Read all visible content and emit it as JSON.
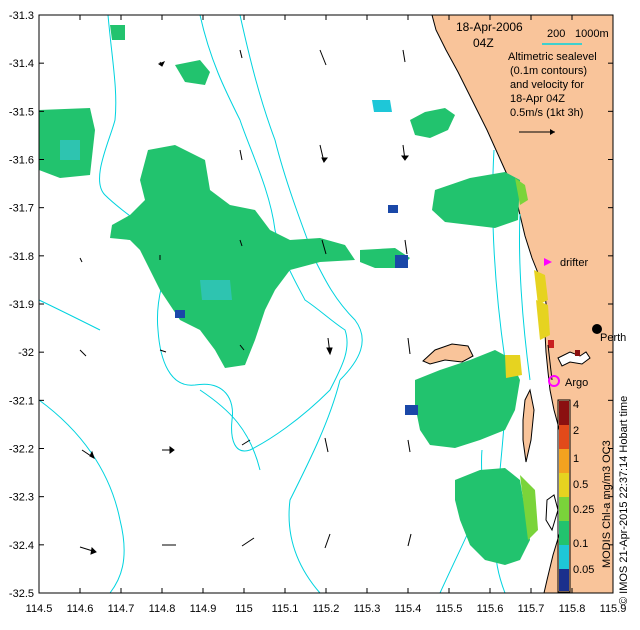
{
  "map": {
    "date": "18-Apr-2006",
    "time": "04Z",
    "isobath_labels": [
      "200",
      "1000m"
    ],
    "legend_lines": [
      "Altimetric sealevel",
      "(0.1m contours)",
      "and velocity for",
      "18-Apr 04Z",
      "0.5m/s (1kt 3h)"
    ],
    "x_ticks": [
      "114.5",
      "114.6",
      "114.7",
      "114.8",
      "114.9",
      "115",
      "115.1",
      "115.2",
      "115.3",
      "115.4",
      "115.5",
      "115.6",
      "115.7",
      "115.8",
      "115.9"
    ],
    "y_ticks": [
      "-31.3",
      "-31.4",
      "-31.5",
      "-31.6",
      "-31.7",
      "-31.8",
      "-31.9",
      "-32",
      "-32.1",
      "-32.2",
      "-32.3",
      "-32.4",
      "-32.5"
    ],
    "x_range": [
      114.5,
      115.9
    ],
    "y_range": [
      -32.5,
      -31.3
    ],
    "markers": {
      "drifter": "drifter",
      "argo": "Argo",
      "perth": "Perth"
    },
    "colorbar": {
      "ticks": [
        "4",
        "2",
        "1",
        "0.5",
        "0.25",
        "0.1",
        "0.05"
      ],
      "caption": "MODIS Chl-a mg/m3 OC3",
      "credit": "© IMOS 21-Apr-2015 22:37:14 Hobart time"
    },
    "colors": {
      "land": "#f9c49a",
      "isobath": "#00d3df",
      "drifter": "#ff00ff",
      "argo": "#ff00ff",
      "chl_main": "#22c36e"
    }
  }
}
